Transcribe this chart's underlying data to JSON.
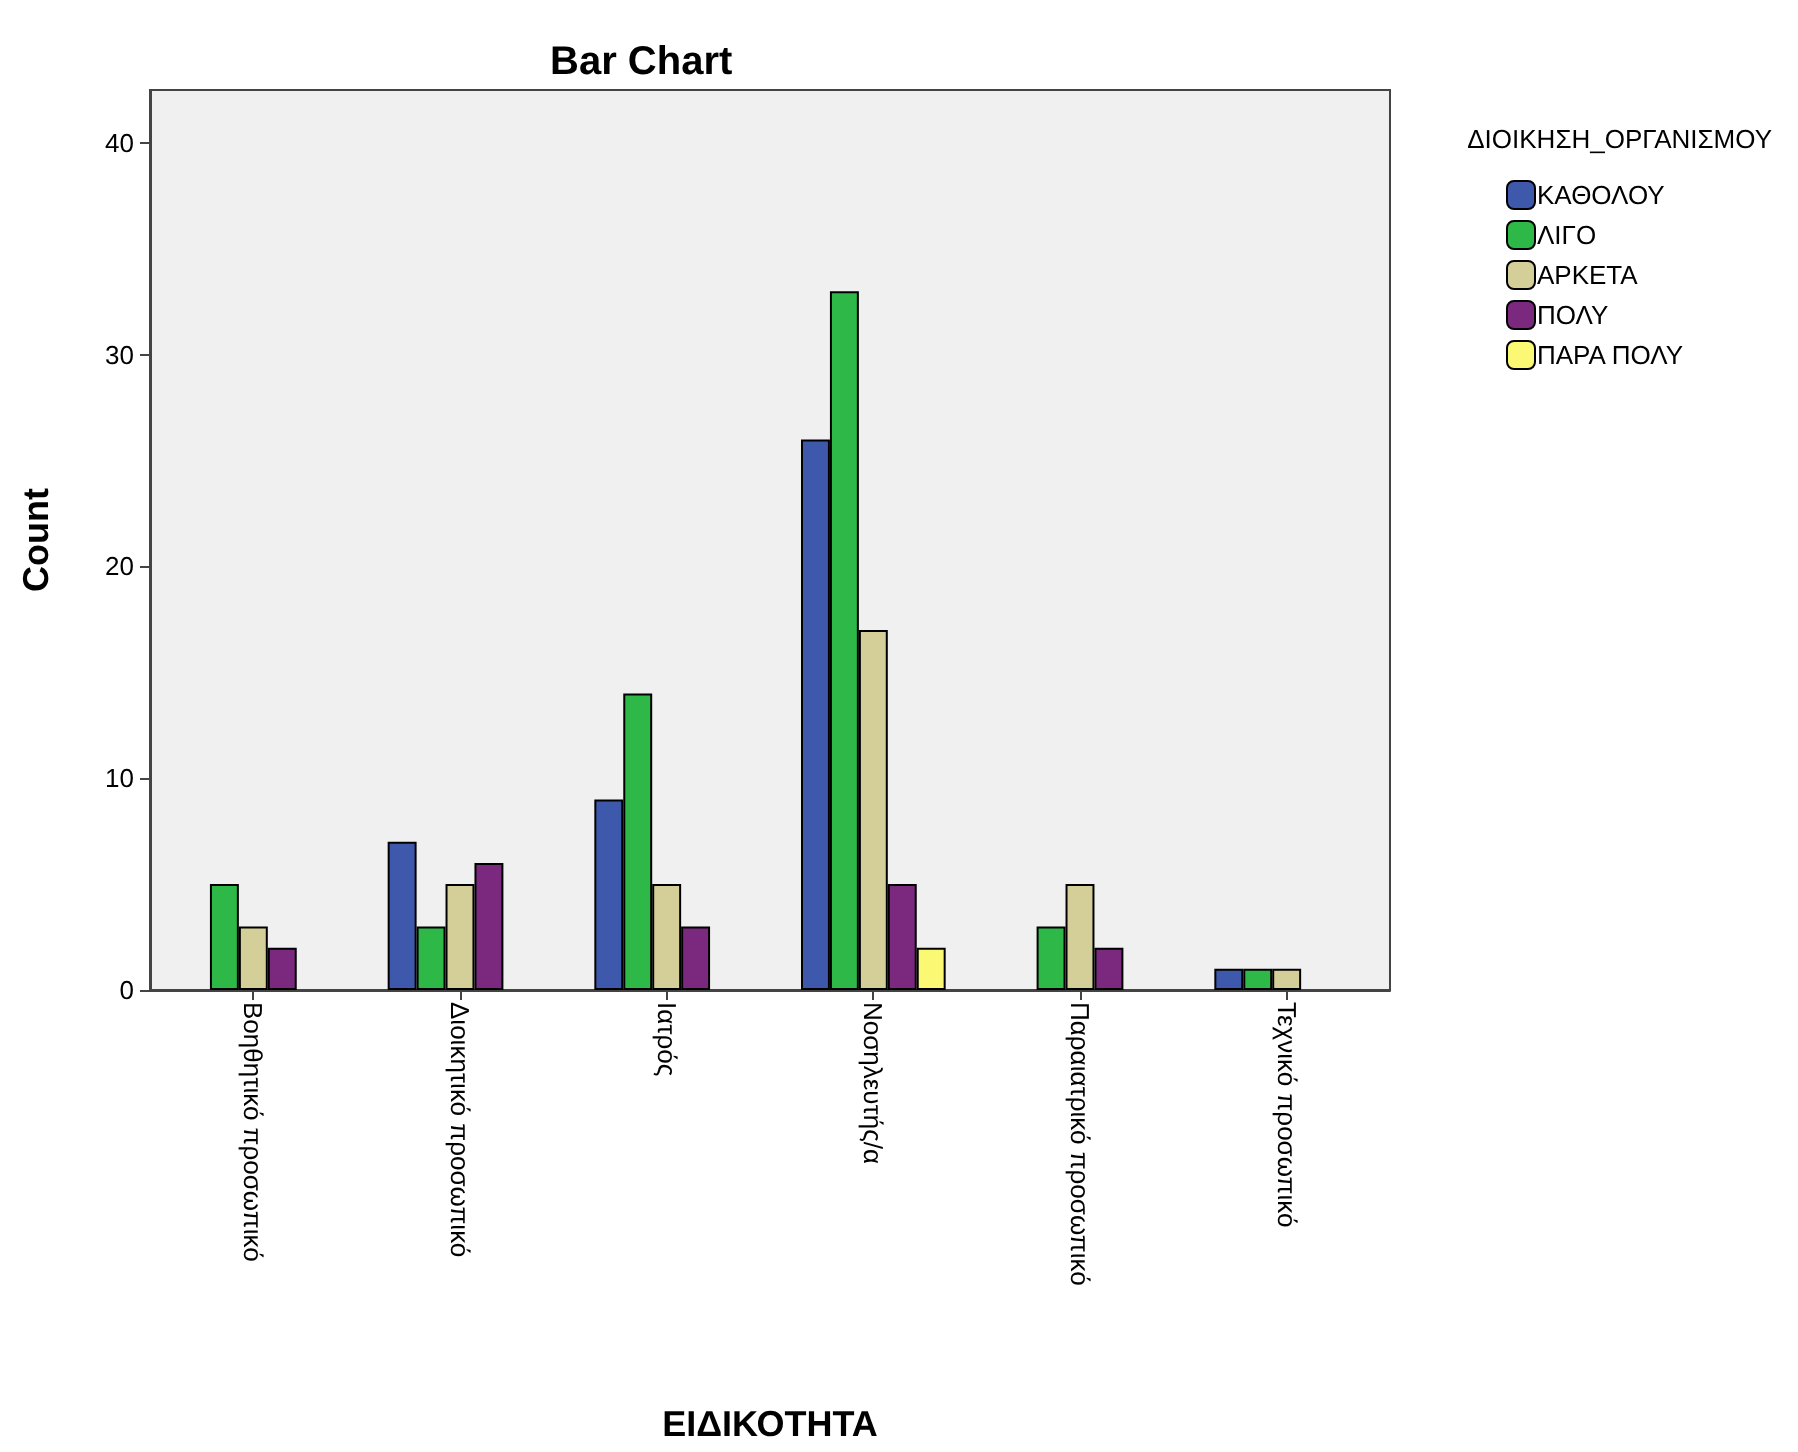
{
  "chart_data": {
    "type": "bar",
    "title": "Bar Chart",
    "xlabel": "ΕΙΔΙΚΟΤΗΤΑ",
    "ylabel": "Count",
    "legend_title": "ΔΙΟΙΚΗΣΗ_ΟΡΓΑΝΙΣΜΟΥ",
    "categories": [
      "Βοηθητικό προσωπικό",
      "Διοικητικό προσωπικό",
      "Ιατρός",
      "Νοσηλευτής/α",
      "Παραιατρικό προσωπικό",
      "Τεχνικό προσωπικό"
    ],
    "series": [
      {
        "name": "ΚΑΘΟΛΟΥ",
        "color": "#3e58ac",
        "values": [
          null,
          7,
          9,
          26,
          null,
          1
        ]
      },
      {
        "name": "ΛΙΓΟ",
        "color": "#2eb848",
        "values": [
          5,
          3,
          14,
          33,
          3,
          1
        ]
      },
      {
        "name": "ΑΡΚΕΤΑ",
        "color": "#d4cf98",
        "values": [
          3,
          5,
          5,
          17,
          5,
          1
        ]
      },
      {
        "name": "ΠΟΛΥ",
        "color": "#7b287f",
        "values": [
          2,
          6,
          3,
          5,
          2,
          null
        ]
      },
      {
        "name": "ΠΑΡΑ ΠΟΛΥ",
        "color": "#fbf873",
        "values": [
          null,
          null,
          null,
          2,
          null,
          null
        ]
      }
    ],
    "ylim": [
      0,
      42.5
    ],
    "yticks": [
      0,
      10,
      20,
      30,
      40
    ],
    "grid": false,
    "legend": "top right"
  }
}
